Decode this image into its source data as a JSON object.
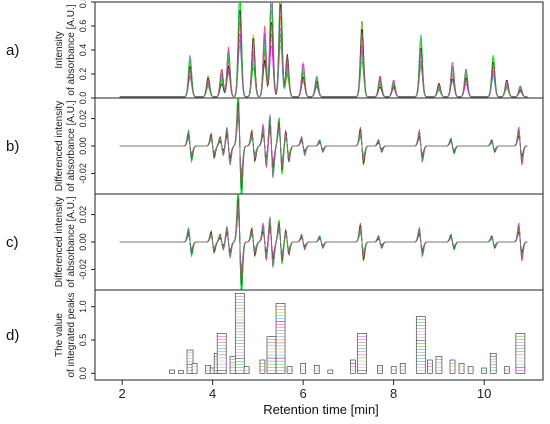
{
  "chart_data": {
    "type": "line",
    "x_axis": {
      "label": "Retention time [min]",
      "range": [
        1.4,
        11.3
      ],
      "ticks": [
        2,
        4,
        6,
        8,
        10
      ],
      "tick_labels": [
        "2",
        "4",
        "6",
        "8",
        "10"
      ]
    },
    "series_colors": [
      "#1f77b4",
      "#2ca02c",
      "#d62728",
      "#9467bd",
      "#bcbd22",
      "#e377c2",
      "#17becf",
      "#000000",
      "#ff00ff",
      "#00cc00",
      "#8c564b",
      "#7f7f7f"
    ],
    "panels": [
      {
        "letter": "a)",
        "ylabel_lines": [
          "Intensity",
          "of absorbance [A.U.]"
        ],
        "ylim": [
          0,
          0.8
        ],
        "yticks": [
          0,
          0.2,
          0.4,
          0.6,
          0.8
        ],
        "ytick_labels": [
          "0.0",
          "0.2",
          "0.4",
          "0.6",
          "0.8"
        ],
        "peaks": [
          {
            "x": 3.5,
            "y": 0.3
          },
          {
            "x": 3.9,
            "y": 0.15
          },
          {
            "x": 4.2,
            "y": 0.2
          },
          {
            "x": 4.35,
            "y": 0.35
          },
          {
            "x": 4.6,
            "y": 0.8
          },
          {
            "x": 4.9,
            "y": 0.45
          },
          {
            "x": 5.15,
            "y": 0.5
          },
          {
            "x": 5.3,
            "y": 0.8
          },
          {
            "x": 5.5,
            "y": 0.8
          },
          {
            "x": 5.65,
            "y": 0.3
          },
          {
            "x": 6.0,
            "y": 0.25
          },
          {
            "x": 6.3,
            "y": 0.15
          },
          {
            "x": 7.3,
            "y": 0.55
          },
          {
            "x": 7.7,
            "y": 0.15
          },
          {
            "x": 8.0,
            "y": 0.12
          },
          {
            "x": 8.6,
            "y": 0.45
          },
          {
            "x": 9.0,
            "y": 0.1
          },
          {
            "x": 9.3,
            "y": 0.25
          },
          {
            "x": 9.6,
            "y": 0.2
          },
          {
            "x": 10.2,
            "y": 0.3
          },
          {
            "x": 10.5,
            "y": 0.12
          },
          {
            "x": 10.8,
            "y": 0.08
          }
        ]
      },
      {
        "letter": "b)",
        "ylabel_lines": [
          "Differenced intensity",
          "of absorbance [A.U.]"
        ],
        "ylim": [
          -0.035,
          0.035
        ],
        "yticks": [
          -0.02,
          0,
          0.02
        ],
        "ytick_labels": [
          "-0.02",
          "0.00",
          "0.02"
        ],
        "peaks": [
          {
            "x": 3.5,
            "y": 0.01
          },
          {
            "x": 4.0,
            "y": 0.008
          },
          {
            "x": 4.2,
            "y": 0.006
          },
          {
            "x": 4.35,
            "y": 0.012
          },
          {
            "x": 4.6,
            "y": 0.035
          },
          {
            "x": 4.9,
            "y": 0.01
          },
          {
            "x": 5.15,
            "y": 0.014
          },
          {
            "x": 5.3,
            "y": 0.02
          },
          {
            "x": 5.5,
            "y": 0.018
          },
          {
            "x": 5.65,
            "y": 0.01
          },
          {
            "x": 6.0,
            "y": 0.006
          },
          {
            "x": 6.4,
            "y": 0.004
          },
          {
            "x": 7.3,
            "y": 0.012
          },
          {
            "x": 7.7,
            "y": 0.004
          },
          {
            "x": 8.6,
            "y": 0.01
          },
          {
            "x": 9.3,
            "y": 0.005
          },
          {
            "x": 10.2,
            "y": 0.004
          },
          {
            "x": 10.8,
            "y": 0.012
          }
        ]
      },
      {
        "letter": "c)",
        "ylabel_lines": [
          "Differenced intensity",
          "of absorbance [A.U.]"
        ],
        "ylim": [
          -0.035,
          0.035
        ],
        "yticks": [
          -0.02,
          0,
          0.02
        ],
        "ytick_labels": [
          "-0.02",
          "0.00",
          "0.02"
        ],
        "peaks": [
          {
            "x": 3.5,
            "y": 0.009
          },
          {
            "x": 4.0,
            "y": 0.007
          },
          {
            "x": 4.2,
            "y": 0.005
          },
          {
            "x": 4.35,
            "y": 0.01
          },
          {
            "x": 4.6,
            "y": 0.035
          },
          {
            "x": 4.9,
            "y": 0.009
          },
          {
            "x": 5.15,
            "y": 0.012
          },
          {
            "x": 5.3,
            "y": 0.016
          },
          {
            "x": 5.5,
            "y": 0.014
          },
          {
            "x": 5.65,
            "y": 0.008
          },
          {
            "x": 6.0,
            "y": 0.005
          },
          {
            "x": 6.4,
            "y": 0.004
          },
          {
            "x": 7.3,
            "y": 0.012
          },
          {
            "x": 7.7,
            "y": 0.004
          },
          {
            "x": 8.6,
            "y": 0.009
          },
          {
            "x": 9.3,
            "y": 0.005
          },
          {
            "x": 10.2,
            "y": 0.004
          },
          {
            "x": 10.8,
            "y": 0.012
          }
        ]
      },
      {
        "letter": "d)",
        "ylabel_lines": [
          "The value",
          "of integrated peaks"
        ],
        "ylim": [
          -0.1,
          1.25
        ],
        "yticks": [
          0,
          0.5,
          1.0
        ],
        "ytick_labels": [
          "0.0",
          "0.5",
          "1.0"
        ],
        "bars": [
          {
            "x": 3.1,
            "y": 0.05
          },
          {
            "x": 3.3,
            "y": 0.04
          },
          {
            "x": 3.5,
            "y": 0.35
          },
          {
            "x": 3.6,
            "y": 0.15
          },
          {
            "x": 3.9,
            "y": 0.12
          },
          {
            "x": 4.0,
            "y": 0.08
          },
          {
            "x": 4.1,
            "y": 0.3
          },
          {
            "x": 4.2,
            "y": 0.6
          },
          {
            "x": 4.45,
            "y": 0.25
          },
          {
            "x": 4.6,
            "y": 1.2
          },
          {
            "x": 4.75,
            "y": 0.1
          },
          {
            "x": 5.1,
            "y": 0.2
          },
          {
            "x": 5.3,
            "y": 0.55
          },
          {
            "x": 5.5,
            "y": 1.05
          },
          {
            "x": 5.7,
            "y": 0.1
          },
          {
            "x": 6.0,
            "y": 0.15
          },
          {
            "x": 6.3,
            "y": 0.12
          },
          {
            "x": 6.6,
            "y": 0.05
          },
          {
            "x": 7.1,
            "y": 0.2
          },
          {
            "x": 7.3,
            "y": 0.6
          },
          {
            "x": 7.7,
            "y": 0.12
          },
          {
            "x": 8.0,
            "y": 0.1
          },
          {
            "x": 8.2,
            "y": 0.15
          },
          {
            "x": 8.6,
            "y": 0.85
          },
          {
            "x": 8.8,
            "y": 0.2
          },
          {
            "x": 9.0,
            "y": 0.25
          },
          {
            "x": 9.3,
            "y": 0.2
          },
          {
            "x": 9.5,
            "y": 0.15
          },
          {
            "x": 9.7,
            "y": 0.1
          },
          {
            "x": 10.0,
            "y": 0.08
          },
          {
            "x": 10.2,
            "y": 0.3
          },
          {
            "x": 10.5,
            "y": 0.1
          },
          {
            "x": 10.8,
            "y": 0.6
          }
        ]
      }
    ]
  }
}
